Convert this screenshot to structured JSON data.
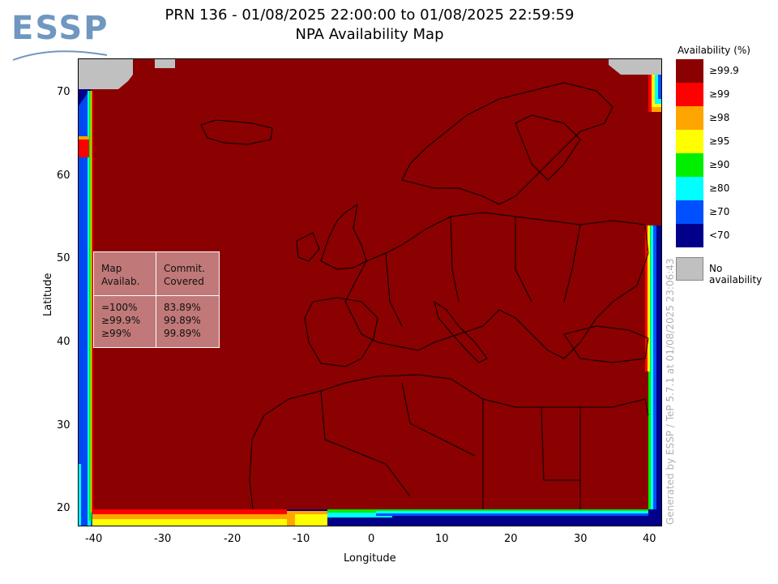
{
  "logo": {
    "text": "ESSP"
  },
  "title": {
    "line1": "PRN 136 - 01/08/2025 22:00:00 to 01/08/2025 22:59:59",
    "line2": "NPA Availability Map"
  },
  "axes": {
    "xlabel": "Longitude",
    "ylabel": "Latitude",
    "x_ticks": [
      "-40",
      "-30",
      "-20",
      "-10",
      "0",
      "10",
      "20",
      "30",
      "40"
    ],
    "y_ticks": [
      "70",
      "60",
      "50",
      "40",
      "30",
      "20"
    ]
  },
  "legend": {
    "title": "Availability (%)",
    "items": [
      {
        "label": "≥99.9",
        "color": "#8b0000"
      },
      {
        "label": "≥99",
        "color": "#ff0000"
      },
      {
        "label": "≥98",
        "color": "#ffa500"
      },
      {
        "label": "≥95",
        "color": "#ffff00"
      },
      {
        "label": "≥90",
        "color": "#00ee00"
      },
      {
        "label": "≥80",
        "color": "#00ffff"
      },
      {
        "label": "≥70",
        "color": "#0050ff"
      },
      {
        "label": "<70",
        "color": "#00008b"
      }
    ],
    "no_data": {
      "label": "No availability",
      "color": "#c0c0c0"
    }
  },
  "stats_table": {
    "header_left": [
      "Map",
      "Availab."
    ],
    "header_right": [
      "Commit.",
      "Covered"
    ],
    "rows_left": [
      "=100%",
      "≥99.9%",
      "≥99%"
    ],
    "rows_right": [
      "83.89%",
      "99.89%",
      "99.89%"
    ]
  },
  "watermark": "Generated by ESSP / TeP 5.7.1 at 01/08/2025 23:06:43",
  "colors": {
    "map_fill": "#8b0000",
    "coastline": "#000000",
    "no_data": "#c0c0c0"
  }
}
